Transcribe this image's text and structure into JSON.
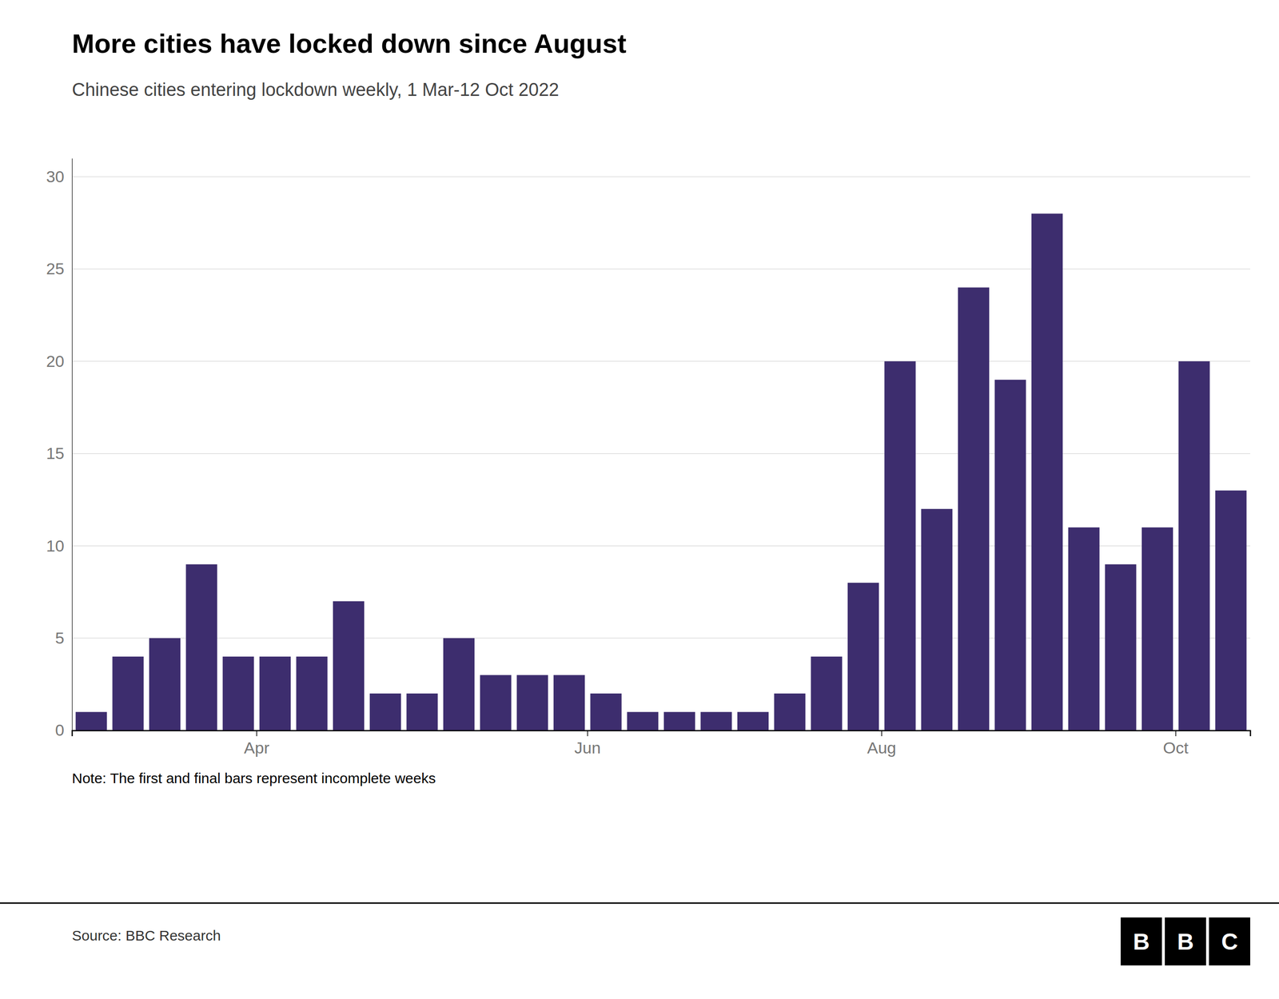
{
  "chart_data": {
    "type": "bar",
    "title": "More cities have locked down since August",
    "subtitle": "Chinese cities entering lockdown weekly, 1 Mar-12 Oct 2022",
    "note": "Note: The first and final bars represent incomplete weeks",
    "source": "Source: BBC Research",
    "annotations": [
      "BBC"
    ],
    "categories": [
      null,
      null,
      null,
      null,
      null,
      "Apr",
      null,
      null,
      null,
      null,
      null,
      null,
      null,
      null,
      "Jun",
      null,
      null,
      null,
      null,
      null,
      null,
      null,
      "Aug",
      null,
      null,
      null,
      null,
      null,
      null,
      null,
      "Oct",
      null
    ],
    "values": [
      1,
      4,
      5,
      9,
      4,
      4,
      4,
      7,
      2,
      2,
      5,
      3,
      3,
      3,
      2,
      1,
      1,
      1,
      1,
      2,
      4,
      8,
      20,
      12,
      24,
      19,
      28,
      11,
      9,
      11,
      20,
      13
    ],
    "color": "#3d2d6e",
    "ylim": [
      0,
      31
    ],
    "yticks": [
      0,
      5,
      10,
      15,
      20,
      25,
      30
    ],
    "grid": true
  }
}
